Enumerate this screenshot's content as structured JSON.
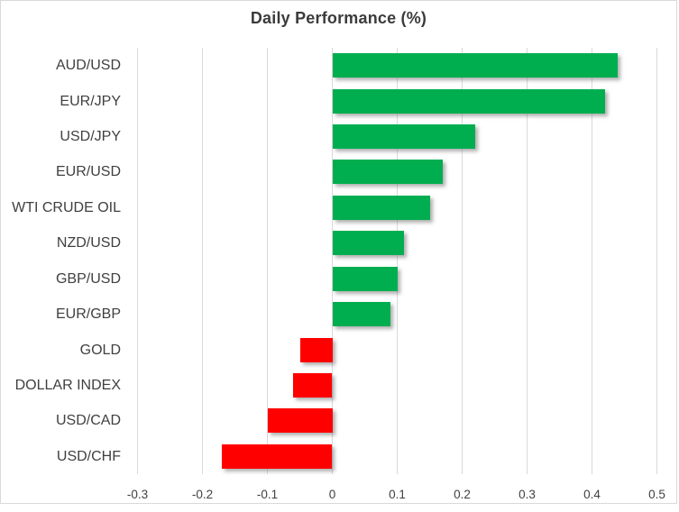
{
  "chart_data": {
    "type": "bar",
    "orientation": "horizontal",
    "title": "Daily Performance (%)",
    "categories": [
      "AUD/USD",
      "EUR/JPY",
      "USD/JPY",
      "EUR/USD",
      "WTI CRUDE OIL",
      "NZD/USD",
      "GBP/USD",
      "EUR/GBP",
      "GOLD",
      "DOLLAR INDEX",
      "USD/CAD",
      "USD/CHF"
    ],
    "values": [
      0.44,
      0.42,
      0.22,
      0.17,
      0.15,
      0.11,
      0.1,
      0.09,
      -0.05,
      -0.06,
      -0.1,
      -0.17
    ],
    "x_ticks": [
      -0.3,
      -0.2,
      -0.1,
      0,
      0.1,
      0.2,
      0.3,
      0.4,
      0.5
    ],
    "xlim": [
      -0.3,
      0.5
    ],
    "xlabel": "",
    "ylabel": "",
    "grid": "vertical-only",
    "legend": "none",
    "colors": {
      "positive": "#00AE50",
      "negative": "#FF0000",
      "gridline": "#D9D9D9",
      "text": "#404040",
      "title": "#3B3B3B",
      "border": "#D9D9D9",
      "background": "#FFFFFF"
    }
  }
}
